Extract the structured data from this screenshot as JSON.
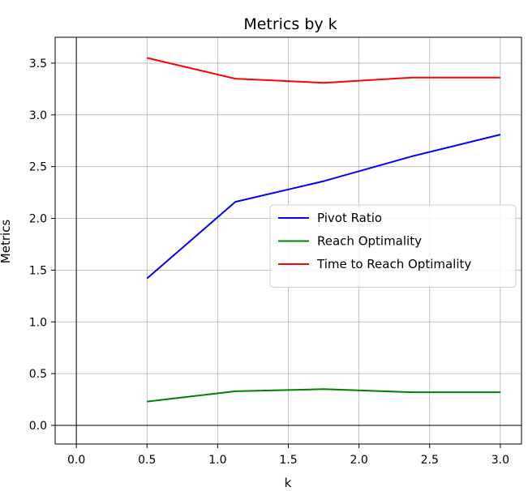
{
  "chart_data": {
    "type": "line",
    "title": "Metrics by k",
    "xlabel": "k",
    "ylabel": "Metrics",
    "xlim": [
      -0.15,
      3.15
    ],
    "ylim": [
      -0.18,
      3.75
    ],
    "xticks": [
      0.0,
      0.5,
      1.0,
      1.5,
      2.0,
      2.5,
      3.0
    ],
    "xtick_labels": [
      "0.0",
      "0.5",
      "1.0",
      "1.5",
      "2.0",
      "2.5",
      "3.0"
    ],
    "yticks": [
      0.0,
      0.5,
      1.0,
      1.5,
      2.0,
      2.5,
      3.0,
      3.5
    ],
    "ytick_labels": [
      "0.0",
      "0.5",
      "1.0",
      "1.5",
      "2.0",
      "2.5",
      "3.0",
      "3.5"
    ],
    "grid": true,
    "zero_lines": true,
    "legend_position": "center-right",
    "x": [
      0.5,
      1.125,
      1.75,
      2.375,
      3.0
    ],
    "series": [
      {
        "name": "Pivot Ratio",
        "color": "#0000ff",
        "values": [
          1.42,
          2.16,
          2.36,
          2.6,
          2.81
        ]
      },
      {
        "name": "Reach Optimality",
        "color": "#008000",
        "values": [
          0.23,
          0.33,
          0.35,
          0.32,
          0.32
        ]
      },
      {
        "name": "Time to Reach Optimality",
        "color": "#ff0000",
        "values": [
          3.55,
          3.35,
          3.31,
          3.36,
          3.36
        ]
      }
    ]
  }
}
